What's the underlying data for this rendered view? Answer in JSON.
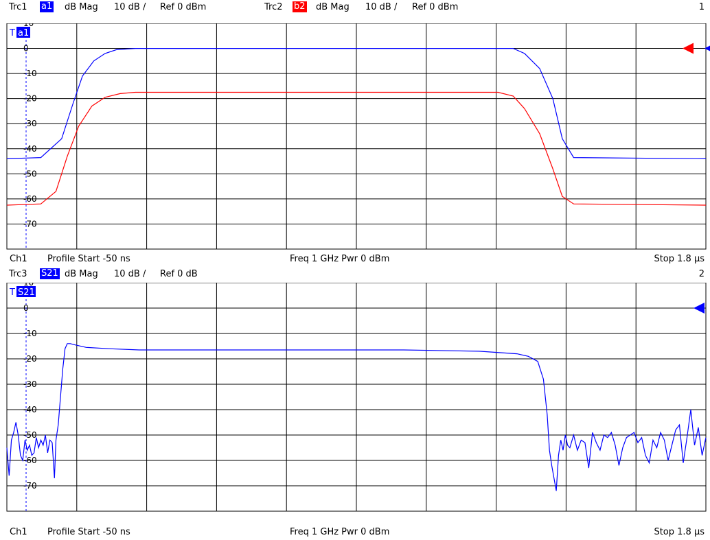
{
  "diagram1": {
    "number": "1",
    "traces": [
      {
        "name": "Trc1",
        "meas": "a1",
        "format": "dB Mag",
        "scale": "10 dB /",
        "ref": "Ref 0 dBm",
        "color": "#0000ff"
      },
      {
        "name": "Trc2",
        "meas": "b2",
        "format": "dB Mag",
        "scale": "10 dB /",
        "ref": "Ref 0 dBm",
        "color": "#ff0000"
      }
    ],
    "trace_tag": "a1",
    "footer": {
      "channel": "Ch1",
      "start": "Profile Start  -50 ns",
      "center": "Freq 1 GHz  Pwr 0 dBm",
      "stop": "Stop  1.8 µs"
    }
  },
  "diagram2": {
    "number": "2",
    "traces": [
      {
        "name": "Trc3",
        "meas": "S21",
        "format": "dB Mag",
        "scale": "10 dB /",
        "ref": "Ref 0 dB",
        "color": "#0000ff"
      }
    ],
    "trace_tag": "S21",
    "footer": {
      "channel": "Ch1",
      "start": "Profile Start  -50 ns",
      "center": "Freq 1 GHz  Pwr 0 dBm",
      "stop": "Stop  1.8 µs"
    }
  },
  "chart_data": [
    {
      "type": "line",
      "ylim": [
        -80,
        10
      ],
      "y_ticks": [
        "10",
        "0",
        "-10",
        "-20",
        "-30",
        "-40",
        "-50",
        "-60",
        "-70"
      ],
      "xlim_ns": [
        -50,
        1800
      ],
      "grid": true,
      "series": [
        {
          "name": "a1",
          "color": "#0000ff",
          "x": [
            -50,
            40,
            95,
            125,
            150,
            180,
            210,
            240,
            290,
            320,
            1290,
            1320,
            1360,
            1395,
            1420,
            1450,
            1800
          ],
          "y": [
            -44,
            -43.5,
            -36,
            -22,
            -11,
            -5,
            -2,
            -0.5,
            0,
            0,
            0,
            -2,
            -8,
            -20,
            -36,
            -43.5,
            -44
          ]
        },
        {
          "name": "b2",
          "color": "#ff0000",
          "x": [
            -50,
            40,
            80,
            110,
            140,
            175,
            210,
            250,
            290,
            330,
            1250,
            1290,
            1320,
            1360,
            1395,
            1420,
            1450,
            1800
          ],
          "y": [
            -62.5,
            -62,
            -57,
            -43,
            -31,
            -23,
            -19.5,
            -18,
            -17.5,
            -17.5,
            -17.5,
            -19,
            -24,
            -34,
            -48,
            -59,
            -62,
            -62.5
          ]
        }
      ],
      "ref_markers": [
        {
          "trace": "b2",
          "color": "#ff0000"
        },
        {
          "trace": "a1",
          "color": "#0000ff"
        }
      ]
    },
    {
      "type": "line",
      "ylim": [
        -80,
        10
      ],
      "y_ticks": [
        "10",
        "0",
        "-10",
        "-20",
        "-30",
        "-40",
        "-50",
        "-60",
        "-70"
      ],
      "xlim_ns": [
        -50,
        1800
      ],
      "grid": true,
      "series": [
        {
          "name": "S21",
          "color": "#0000ff",
          "x": [
            -50,
            -44,
            -38,
            -32,
            -26,
            -20,
            -14,
            -8,
            -2,
            4,
            10,
            16,
            22,
            28,
            34,
            40,
            46,
            52,
            58,
            64,
            70,
            76,
            80,
            86,
            92,
            98,
            104,
            110,
            118,
            130,
            160,
            220,
            300,
            400,
            600,
            800,
            1000,
            1200,
            1300,
            1330,
            1355,
            1370,
            1380,
            1386,
            1392,
            1398,
            1404,
            1410,
            1416,
            1422,
            1428,
            1434,
            1440,
            1450,
            1460,
            1470,
            1480,
            1490,
            1500,
            1510,
            1520,
            1530,
            1540,
            1550,
            1560,
            1570,
            1580,
            1590,
            1600,
            1610,
            1620,
            1630,
            1640,
            1650,
            1660,
            1670,
            1680,
            1690,
            1700,
            1710,
            1720,
            1730,
            1740,
            1750,
            1760,
            1770,
            1780,
            1790,
            1800
          ],
          "y": [
            -55,
            -66,
            -52,
            -49,
            -45,
            -50,
            -58,
            -60,
            -52,
            -56,
            -54,
            -58,
            -57,
            -51,
            -55,
            -52,
            -54,
            -50,
            -57,
            -52,
            -53,
            -67,
            -52,
            -46,
            -35,
            -24,
            -16,
            -14,
            -14,
            -14.5,
            -15.5,
            -16,
            -16.5,
            -16.5,
            -16.5,
            -16.5,
            -16.5,
            -17,
            -18,
            -19,
            -21,
            -28,
            -42,
            -56,
            -62,
            -67,
            -72,
            -58,
            -52,
            -56,
            -50,
            -54,
            -55,
            -50,
            -56,
            -52,
            -53,
            -63,
            -49,
            -53,
            -56,
            -50,
            -51,
            -49,
            -54,
            -62,
            -55,
            -51,
            -50,
            -49,
            -53,
            -51,
            -58,
            -61,
            -52,
            -55,
            -49,
            -52,
            -60,
            -54,
            -48,
            -46,
            -61,
            -51,
            -40,
            -54,
            -47,
            -58,
            -51
          ]
        }
      ],
      "ref_markers": [
        {
          "trace": "S21",
          "color": "#0000ff"
        }
      ]
    }
  ]
}
